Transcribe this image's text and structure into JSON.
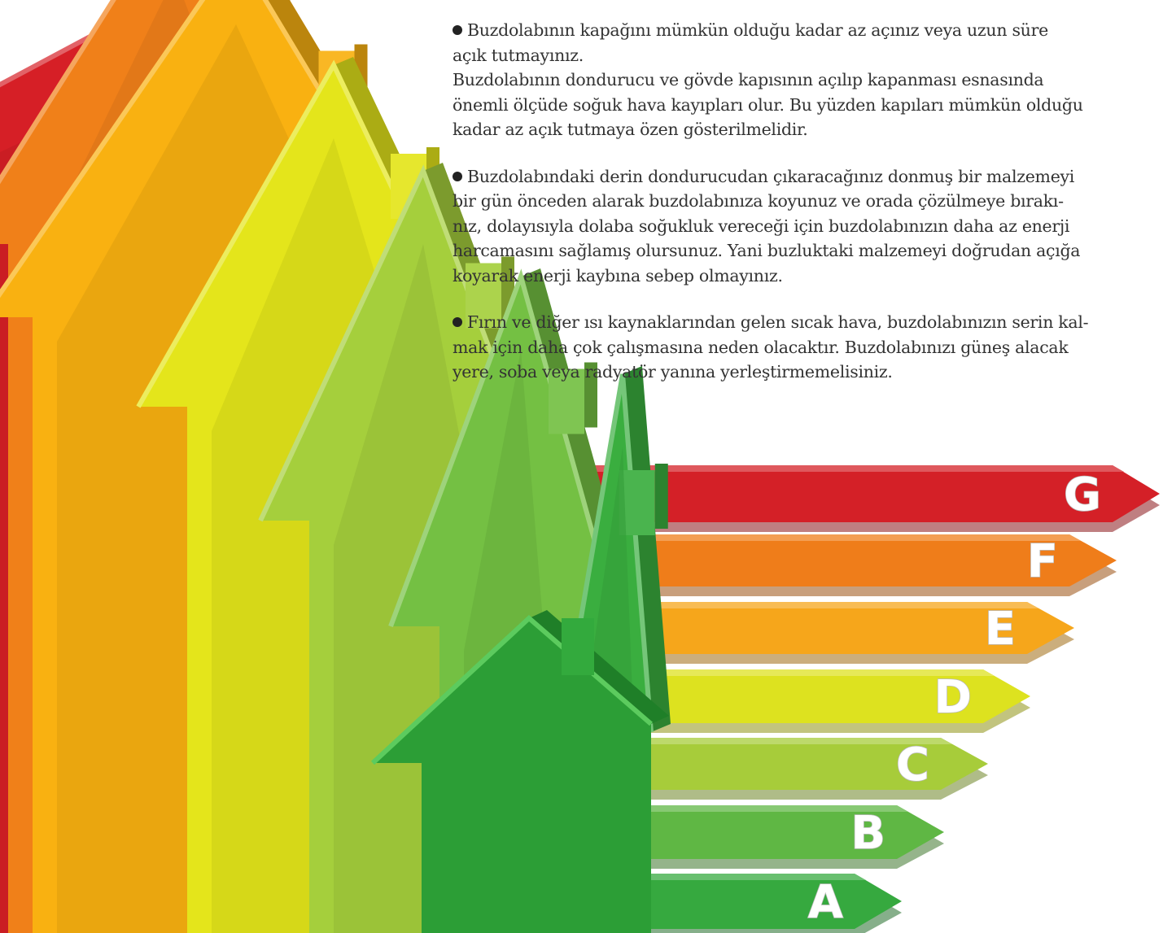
{
  "article": {
    "paragraphs": [
      {
        "bullet": true,
        "lines": [
          "Buzdolabının kapağını mümkün olduğu kadar az açınız veya uzun süre",
          "açık tutmayınız.",
          "Buzdolabının dondurucu ve gövde kapısının açılıp kapanması esnasında",
          "önemli ölçüde soğuk hava kayıpları olur. Bu yüzden kapıları mümkün olduğu",
          "kadar az açık tutmaya özen gösterilmelidir."
        ]
      },
      {
        "bullet": true,
        "lines": [
          "Buzdolabındaki derin dondurucudan çıkaracağınız donmuş bir malzemeyi",
          "bir gün önceden alarak buzdolabınıza koyunuz ve orada çözülmeye bırakı-",
          "nız, dolayısıyla dolaba soğukluk vereceği için buzdolabınızın daha az enerji",
          "harcamasını sağlamış olursunuz. Yani buzluktaki malzemeyi doğrudan açığa",
          "koyarak enerji kaybına sebep olmayınız."
        ]
      },
      {
        "bullet": true,
        "lines": [
          "Fırın ve diğer ısı kaynaklarından gelen sıcak hava, buzdolabınızın serin kal-",
          "mak için daha çok çalışmasına neden olacaktır. Buzdolabınızı güneş alacak",
          "yere, soba veya radyatör yanına yerleştirmemelisiniz."
        ]
      }
    ]
  },
  "energy_label": {
    "grades": [
      {
        "letter": "G",
        "color": "#d42027"
      },
      {
        "letter": "F",
        "color": "#ef7d1a"
      },
      {
        "letter": "E",
        "color": "#f6a61b"
      },
      {
        "letter": "D",
        "color": "#dde21f"
      },
      {
        "letter": "C",
        "color": "#a7cc3a"
      },
      {
        "letter": "B",
        "color": "#5fb744"
      },
      {
        "letter": "A",
        "color": "#36a93f"
      }
    ],
    "house_colors": [
      "#d61f26",
      "#f08019",
      "#f9b111",
      "#e4e51b",
      "#a5cf3c",
      "#74c043",
      "#3aae3f"
    ]
  }
}
